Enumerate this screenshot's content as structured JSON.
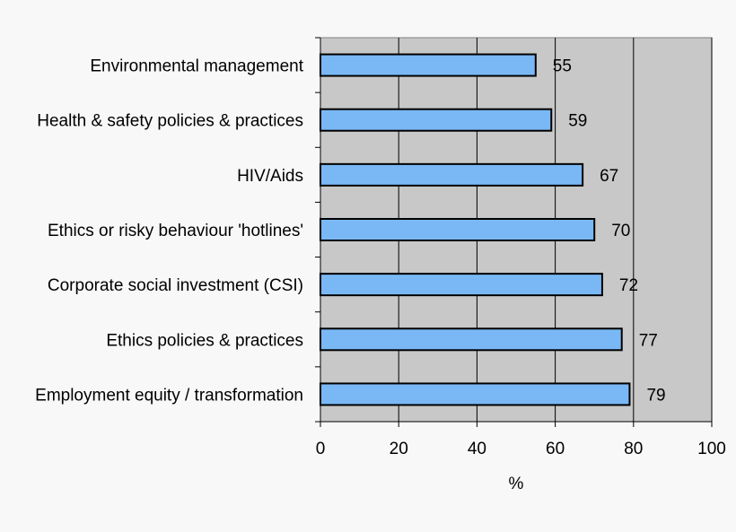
{
  "chart_data": {
    "type": "bar",
    "orientation": "horizontal",
    "categories": [
      "Environmental management",
      "Health & safety policies & practices",
      "HIV/Aids",
      "Ethics or risky behaviour 'hotlines'",
      "Corporate social investment (CSI)",
      "Ethics policies & practices",
      "Employment equity / transformation"
    ],
    "values": [
      55,
      59,
      67,
      70,
      72,
      77,
      79
    ],
    "data_labels": [
      "55",
      "59",
      "67",
      "70",
      "72",
      "77",
      "79"
    ],
    "title": "",
    "xlabel": "%",
    "ylabel": "",
    "xlim": [
      0,
      100
    ],
    "x_ticks": [
      "0",
      "20",
      "40",
      "60",
      "80",
      "100"
    ],
    "x_tick_values": [
      0,
      20,
      40,
      60,
      80,
      100
    ],
    "grid": true,
    "legend": "none",
    "colors": {
      "bar_fill": "#7ab8f5",
      "bar_stroke": "#000000",
      "plot_background": "#c8c8c8",
      "page_background": "#f8f8f8",
      "gridline": "#000000"
    }
  }
}
